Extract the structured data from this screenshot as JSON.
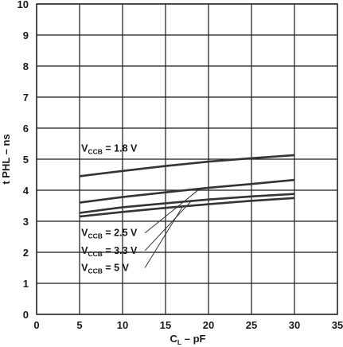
{
  "chart_data": {
    "type": "line",
    "title": "",
    "xlabel": {
      "main": "C",
      "sub": "L",
      "rest": " – pF"
    },
    "ylabel": "t PHL – ns",
    "xlim": [
      0,
      35
    ],
    "ylim": [
      0,
      10
    ],
    "x_ticks": [
      "0",
      "5",
      "10",
      "15",
      "20",
      "25",
      "30",
      "35"
    ],
    "y_ticks": [
      "0",
      "1",
      "2",
      "3",
      "4",
      "5",
      "6",
      "7",
      "8",
      "9",
      "10"
    ],
    "grid": true,
    "x": [
      5,
      10,
      15,
      20,
      25,
      30
    ],
    "series": [
      {
        "name": {
          "main": "V",
          "sub": "CCB",
          "rest": " = 1.8 V"
        },
        "values": [
          4.45,
          4.62,
          4.78,
          4.92,
          5.03,
          5.13
        ]
      },
      {
        "name": {
          "main": "V",
          "sub": "CCB",
          "rest": " = 2.5 V"
        },
        "values": [
          3.6,
          3.78,
          3.93,
          4.08,
          4.2,
          4.33
        ]
      },
      {
        "name": {
          "main": "V",
          "sub": "CCB",
          "rest": " = 3.3 V"
        },
        "values": [
          3.27,
          3.45,
          3.58,
          3.7,
          3.8,
          3.88
        ]
      },
      {
        "name": {
          "main": "V",
          "sub": "CCB",
          "rest": " = 5 V"
        },
        "values": [
          3.15,
          3.3,
          3.43,
          3.55,
          3.66,
          3.75
        ]
      }
    ],
    "line_color": "#333333",
    "grid_color": "#1a1a1a"
  }
}
